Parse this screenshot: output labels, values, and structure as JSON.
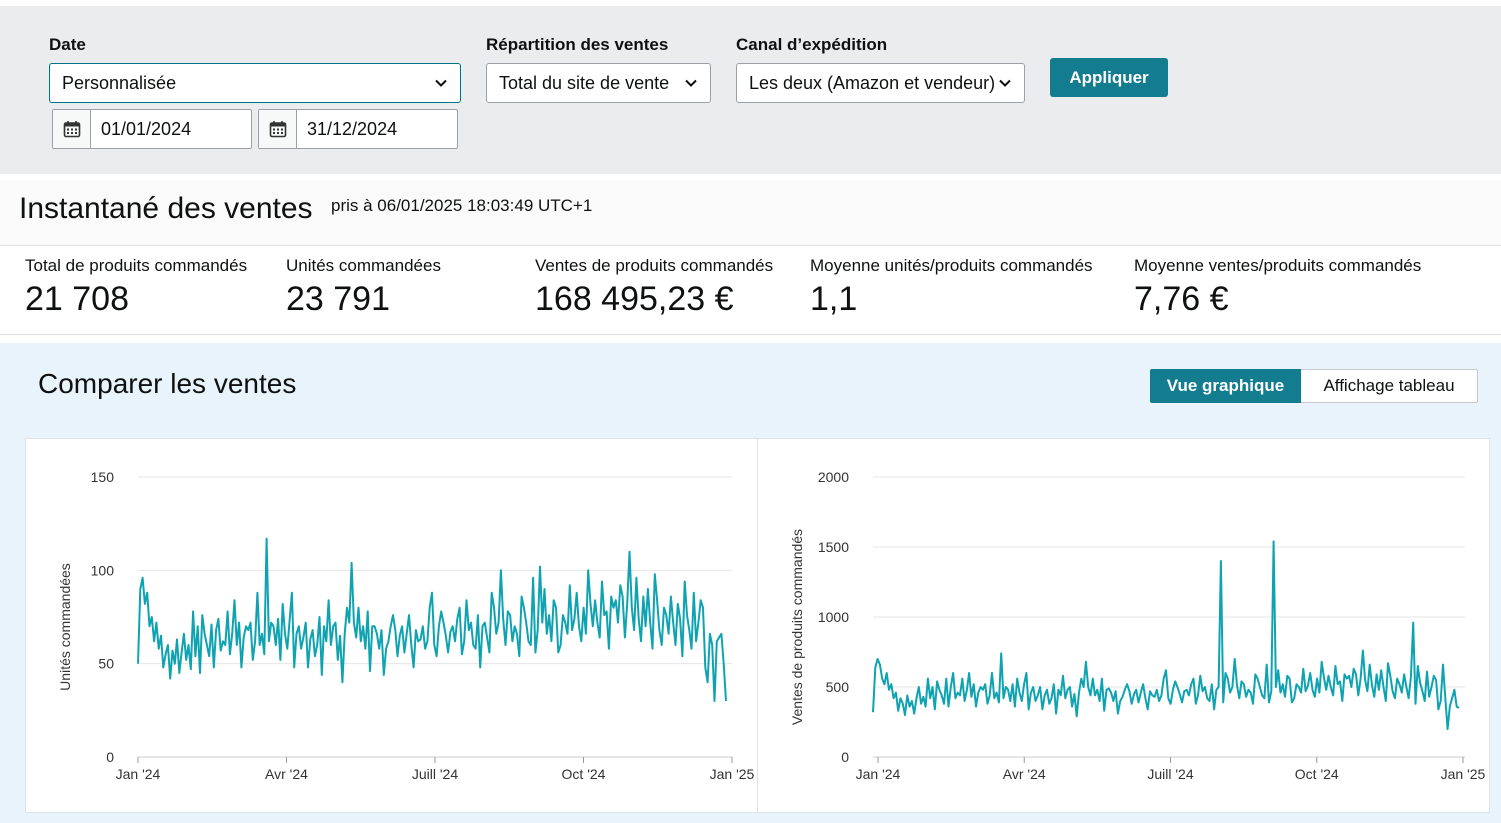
{
  "filters": {
    "date_label": "Date",
    "date_value": "Personnalisée",
    "start_date": "01/01/2024",
    "end_date": "31/12/2024",
    "breakdown_label": "Répartition des ventes",
    "breakdown_value": "Total du site de vente",
    "channel_label": "Canal d’expédition",
    "channel_value": "Les deux (Amazon et vendeur)",
    "apply_label": "Appliquer"
  },
  "snapshot": {
    "title": "Instantané des ventes",
    "taken_at": "pris à 06/01/2025 18:03:49 UTC+1",
    "metrics": [
      {
        "label": "Total de produits commandés",
        "value": "21 708"
      },
      {
        "label": "Unités commandées",
        "value": "23 791"
      },
      {
        "label": "Ventes de produits commandés",
        "value": "168 495,23 €"
      },
      {
        "label": "Moyenne unités/produits commandés",
        "value": "1,1"
      },
      {
        "label": "Moyenne ventes/produits commandés",
        "value": "7,76 €"
      }
    ]
  },
  "compare": {
    "title": "Comparer les ventes",
    "view_chart": "Vue graphique",
    "view_table": "Affichage tableau"
  },
  "colors": {
    "accent": "#147c8f",
    "line": "#0fa3b1",
    "compare_bg": "#e8f3fb",
    "filter_bg": "#ebecee"
  },
  "chart_data": [
    {
      "type": "line",
      "ylabel": "Unités commandées",
      "xlabel": "",
      "ylim": [
        0,
        150
      ],
      "y_ticks": [
        "0",
        "50",
        "100",
        "150"
      ],
      "x_ticks": [
        "Jan '24",
        "Avr '24",
        "Juill '24",
        "Oct '24",
        "Jan '25"
      ],
      "x_range": [
        "2024-01-01",
        "2025-01-06"
      ],
      "grid": true,
      "series": [
        {
          "values": [
            50,
            90,
            96,
            82,
            88,
            70,
            75,
            62,
            72,
            58,
            65,
            48,
            55,
            60,
            42,
            57,
            50,
            63,
            45,
            56,
            66,
            52,
            60,
            47,
            78,
            54,
            70,
            45,
            76,
            66,
            60,
            54,
            71,
            48,
            68,
            74,
            57,
            62,
            60,
            78,
            55,
            66,
            84,
            60,
            72,
            48,
            64,
            70,
            68,
            72,
            52,
            62,
            88,
            60,
            66,
            55,
            117,
            62,
            72,
            70,
            60,
            74,
            52,
            82,
            66,
            58,
            73,
            88,
            48,
            66,
            70,
            58,
            64,
            72,
            48,
            63,
            68,
            54,
            60,
            75,
            44,
            70,
            62,
            84,
            60,
            70,
            72,
            52,
            65,
            40,
            66,
            80,
            72,
            104,
            72,
            64,
            80,
            62,
            70,
            58,
            78,
            46,
            70,
            70,
            66,
            58,
            68,
            44,
            58,
            62,
            70,
            76,
            68,
            54,
            65,
            70,
            56,
            66,
            76,
            60,
            48,
            68,
            62,
            63,
            70,
            58,
            62,
            80,
            88,
            60,
            54,
            70,
            78,
            72,
            65,
            56,
            67,
            70,
            62,
            74,
            80,
            55,
            62,
            84,
            68,
            72,
            60,
            58,
            76,
            48,
            70,
            72,
            64,
            56,
            88,
            80,
            66,
            72,
            100,
            74,
            60,
            78,
            76,
            62,
            70,
            66,
            54,
            86,
            80,
            72,
            62,
            60,
            96,
            56,
            68,
            102,
            72,
            90,
            66,
            76,
            62,
            84,
            80,
            56,
            60,
            76,
            72,
            66,
            92,
            68,
            74,
            88,
            70,
            62,
            80,
            66,
            100,
            82,
            70,
            84,
            72,
            64,
            94,
            76,
            78,
            58,
            86,
            80,
            84,
            72,
            92,
            86,
            64,
            82,
            110,
            80,
            68,
            96,
            74,
            62,
            86,
            70,
            90,
            72,
            58,
            98,
            84,
            68,
            60,
            80,
            76,
            66,
            86,
            72,
            60,
            82,
            74,
            54,
            94,
            76,
            68,
            58,
            88,
            62,
            72,
            84,
            80,
            48,
            40,
            66,
            60,
            30,
            62,
            64,
            66,
            50,
            30
          ]
        }
      ]
    },
    {
      "type": "line",
      "ylabel": "Ventes de produits commandés",
      "xlabel": "",
      "ylim": [
        0,
        2000
      ],
      "y_ticks": [
        "0",
        "500",
        "1000",
        "1500",
        "2000"
      ],
      "x_ticks": [
        "Jan '24",
        "Avr '24",
        "Juill '24",
        "Oct '24",
        "Jan '25"
      ],
      "x_range": [
        "2024-01-01",
        "2025-01-06"
      ],
      "grid": true,
      "series": [
        {
          "values": [
            320,
            640,
            700,
            660,
            560,
            520,
            600,
            480,
            520,
            420,
            460,
            330,
            420,
            380,
            300,
            440,
            360,
            400,
            310,
            420,
            500,
            380,
            430,
            360,
            560,
            420,
            500,
            340,
            540,
            480,
            440,
            380,
            560,
            360,
            500,
            600,
            420,
            460,
            440,
            560,
            400,
            480,
            600,
            430,
            520,
            360,
            460,
            500,
            480,
            520,
            380,
            440,
            600,
            420,
            460,
            390,
            740,
            420,
            500,
            480,
            400,
            520,
            360,
            560,
            460,
            400,
            520,
            600,
            340,
            460,
            500,
            400,
            440,
            500,
            340,
            440,
            480,
            380,
            420,
            520,
            310,
            480,
            440,
            580,
            420,
            480,
            500,
            360,
            450,
            290,
            460,
            560,
            500,
            680,
            500,
            440,
            560,
            440,
            480,
            400,
            560,
            330,
            480,
            490,
            460,
            400,
            470,
            310,
            400,
            430,
            480,
            520,
            470,
            380,
            450,
            480,
            390,
            460,
            520,
            420,
            340,
            470,
            440,
            430,
            480,
            400,
            440,
            560,
            620,
            420,
            380,
            480,
            540,
            500,
            450,
            390,
            470,
            480,
            440,
            520,
            560,
            380,
            440,
            580,
            470,
            500,
            420,
            400,
            520,
            340,
            480,
            500,
            1400,
            390,
            600,
            560,
            460,
            500,
            700,
            510,
            420,
            540,
            520,
            430,
            480,
            460,
            380,
            590,
            560,
            500,
            440,
            420,
            660,
            390,
            470,
            1540,
            500,
            620,
            460,
            520,
            430,
            580,
            560,
            390,
            420,
            520,
            500,
            460,
            630,
            470,
            510,
            600,
            480,
            430,
            560,
            460,
            680,
            570,
            480,
            580,
            500,
            440,
            650,
            520,
            540,
            400,
            590,
            560,
            580,
            500,
            630,
            590,
            440,
            560,
            760,
            550,
            470,
            660,
            510,
            430,
            590,
            480,
            620,
            500,
            400,
            670,
            580,
            470,
            420,
            560,
            520,
            460,
            590,
            500,
            420,
            570,
            960,
            380,
            650,
            530,
            470,
            400,
            610,
            430,
            500,
            580,
            550,
            340,
            400,
            660,
            420,
            200,
            360,
            420,
            480,
            360,
            350
          ]
        }
      ]
    }
  ]
}
